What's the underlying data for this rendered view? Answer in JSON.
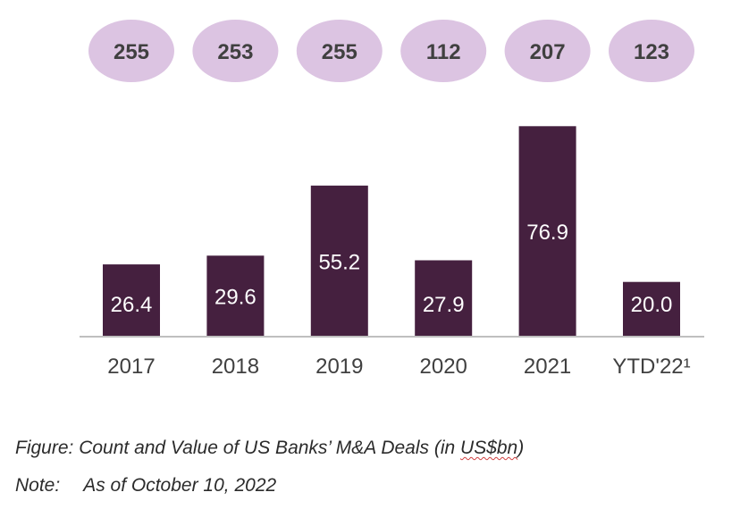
{
  "chart_data": {
    "type": "bar",
    "categories": [
      "2017",
      "2018",
      "2019",
      "2020",
      "2021",
      "YTD'22¹"
    ],
    "values": [
      26.4,
      29.6,
      55.2,
      27.9,
      76.9,
      20.0
    ],
    "value_labels": [
      "26.4",
      "29.6",
      "55.2",
      "27.9",
      "76.9",
      "20.0"
    ],
    "deal_counts": [
      "255",
      "253",
      "255",
      "112",
      "207",
      "123"
    ],
    "ylim": [
      0,
      77
    ],
    "grid": false,
    "colors": {
      "bar": "#45203f",
      "bubble": "#dcc4e2",
      "axis": "#bfbfbf",
      "bar_label": "#ffffff",
      "tick_label": "#404040",
      "bubble_text": "#404040"
    }
  },
  "caption": {
    "figure_prefix": "Figure: Count and Value of US Banks’ M&A Deals (in ",
    "figure_unit": "US$bn",
    "figure_suffix": ")",
    "note_label": "Note:",
    "note_text": "As of October 10, 2022"
  }
}
